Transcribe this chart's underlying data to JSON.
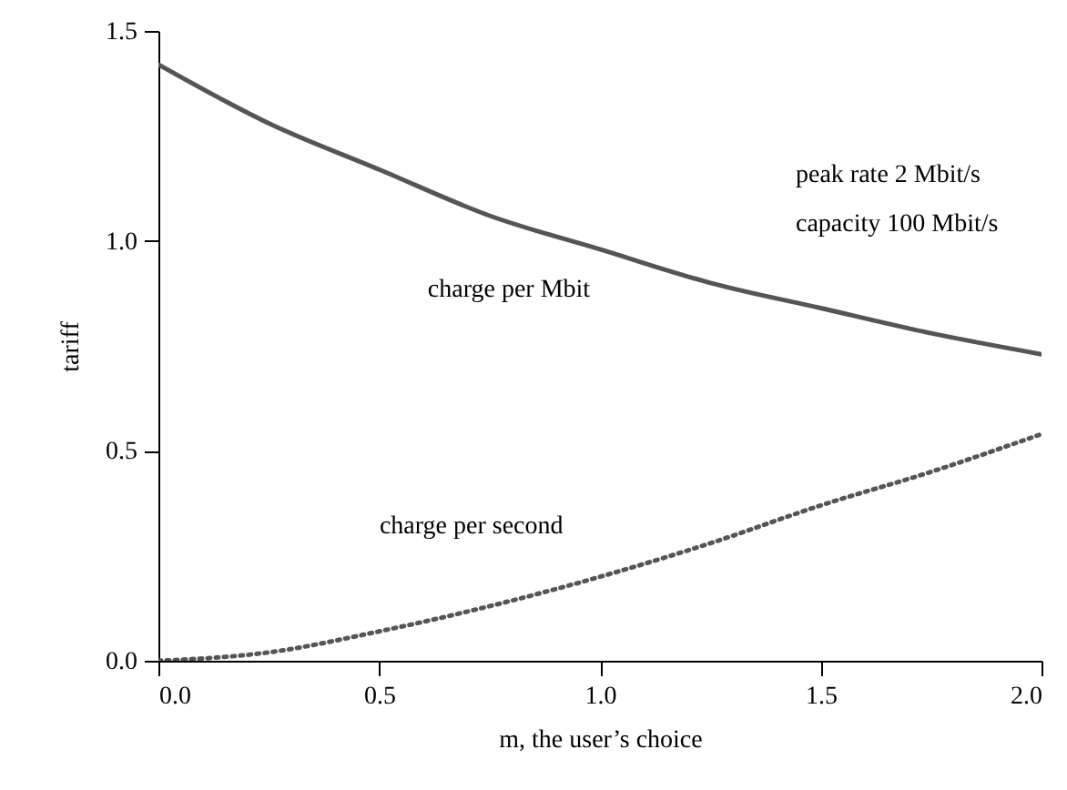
{
  "chart_data": {
    "type": "line",
    "xlabel": "m, the user’s choice",
    "ylabel": "tariff",
    "x": [
      0,
      0.25,
      0.5,
      0.75,
      1.0,
      1.25,
      1.5,
      1.75,
      2.0
    ],
    "series": [
      {
        "name": "charge per Mbit",
        "color": "#555555",
        "line_style": "solid",
        "values": [
          1.42,
          1.28,
          1.17,
          1.06,
          0.98,
          0.9,
          0.84,
          0.78,
          0.73
        ]
      },
      {
        "name": "charge per second",
        "color": "#555555",
        "line_style": "dotted",
        "values": [
          0,
          0.02,
          0.07,
          0.13,
          0.2,
          0.28,
          0.37,
          0.45,
          0.54
        ]
      }
    ],
    "annotations": [
      "peak rate 2 Mbit/s",
      "capacity 100 Mbit/s"
    ],
    "xlim": [
      0,
      2.0
    ],
    "ylim": [
      0,
      1.5
    ],
    "xticks": [
      {
        "value": 0,
        "label": "0.0"
      },
      {
        "value": 0.5,
        "label": "0.5"
      },
      {
        "value": 1,
        "label": "1.0"
      },
      {
        "value": 1.5,
        "label": "1.5"
      },
      {
        "value": 2,
        "label": "2.0"
      }
    ],
    "yticks": [
      {
        "value": 0,
        "label": "0.0"
      },
      {
        "value": 0.5,
        "label": "0.5"
      },
      {
        "value": 1,
        "label": "1.0"
      },
      {
        "value": 1.5,
        "label": "1.5"
      }
    ],
    "grid": false,
    "marker": "none"
  }
}
